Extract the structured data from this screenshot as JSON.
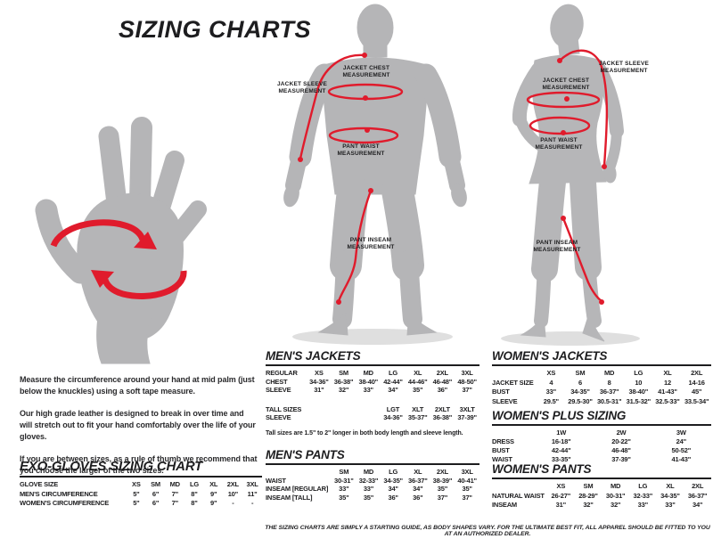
{
  "page": {
    "title": "SIZING CHARTS",
    "disclaimer": "THE SIZING CHARTS ARE SIMPLY A STARTING GUIDE, AS BODY SHAPES VARY. FOR THE ULTIMATE BEST FIT, ALL APPAREL SHOULD BE FITTED TO YOU AT AN AUTHORIZED DEALER."
  },
  "colors": {
    "accent_red": "#e01b2c",
    "silhouette_gray": "#b5b5b7",
    "shadow_gray": "#dfdfdf",
    "text_black": "#1d1d1f"
  },
  "glove_info": {
    "paragraphs": [
      "Measure the circumference around your hand at mid palm (just below the knuckles) using a soft tape measure.",
      "Our high grade leather is designed to break in over time and will stretch out to fit your hand comfortably over the life of your gloves.",
      "If you are between sizes, as a rule of thumb we recommend that you choose the larger of the two sizes."
    ]
  },
  "figures": {
    "male": {
      "labels": {
        "sleeve": "JACKET SLEEVE MEASUREMENT",
        "chest": "JACKET CHEST MEASUREMENT",
        "waist": "PANT WAIST MEASUREMENT",
        "inseam": "PANT INSEAM MEASUREMENT"
      }
    },
    "female": {
      "labels": {
        "sleeve": "JACKET SLEEVE MEASUREMENT",
        "chest": "JACKET CHEST MEASUREMENT",
        "waist": "PANT WAIST MEASUREMENT",
        "inseam": "PANT INSEAM MEASUREMENT"
      }
    }
  },
  "tables": {
    "exo_gloves": {
      "title": "EXO-GLOVES SIZING CHART",
      "rows": [
        [
          "GLOVE SIZE",
          "XS",
          "SM",
          "MD",
          "LG",
          "XL",
          "2XL",
          "3XL"
        ],
        [
          "MEN'S CIRCUMFERENCE",
          "5\"",
          "6\"",
          "7\"",
          "8\"",
          "9\"",
          "10\"",
          "11\""
        ],
        [
          "WOMEN'S CIRCUMFERENCE",
          "5\"",
          "6\"",
          "7\"",
          "8\"",
          "9\"",
          "-",
          "-"
        ]
      ]
    },
    "mens_jackets": {
      "title": "MEN'S JACKETS",
      "rows": [
        [
          "REGULAR",
          "XS",
          "SM",
          "MD",
          "LG",
          "XL",
          "2XL",
          "3XL"
        ],
        [
          "CHEST",
          "34-36\"",
          "36-38\"",
          "38-40\"",
          "42-44\"",
          "44-46\"",
          "46-48\"",
          "48-50\""
        ],
        [
          "SLEEVE",
          "31\"",
          "32\"",
          "33\"",
          "34\"",
          "35\"",
          "36\"",
          "37\""
        ]
      ],
      "tall_rows": [
        [
          "TALL SIZES",
          "",
          "",
          "",
          "LGT",
          "XLT",
          "2XLT",
          "3XLT"
        ],
        [
          "SLEEVE",
          "",
          "",
          "",
          "34-36\"",
          "35-37\"",
          "36-38\"",
          "37-39\""
        ]
      ],
      "note": "Tall sizes are 1.5\" to 2\" longer in both body length and sleeve length."
    },
    "mens_pants": {
      "title": "MEN'S PANTS",
      "rows": [
        [
          "",
          "SM",
          "MD",
          "LG",
          "XL",
          "2XL",
          "3XL"
        ],
        [
          "WAIST",
          "30-31\"",
          "32-33\"",
          "34-35\"",
          "36-37\"",
          "38-39\"",
          "40-41\""
        ],
        [
          "INSEAM [REGULAR]",
          "33\"",
          "33\"",
          "34\"",
          "34\"",
          "35\"",
          "35\""
        ],
        [
          "INSEAM [TALL]",
          "35\"",
          "35\"",
          "36\"",
          "36\"",
          "37\"",
          "37\""
        ]
      ]
    },
    "womens_jackets": {
      "title": "WOMEN'S JACKETS",
      "rows": [
        [
          "",
          "XS",
          "SM",
          "MD",
          "LG",
          "XL",
          "2XL"
        ],
        [
          "JACKET SIZE",
          "4",
          "6",
          "8",
          "10",
          "12",
          "14-16"
        ],
        [
          "BUST",
          "33\"",
          "34-35\"",
          "36-37\"",
          "38-40\"",
          "41-43\"",
          "45\""
        ],
        [
          "SLEEVE",
          "29.5\"",
          "29.5-30\"",
          "30.5-31\"",
          "31.5-32\"",
          "32.5-33\"",
          "33.5-34\""
        ]
      ]
    },
    "womens_plus": {
      "title": "WOMEN'S PLUS SIZING",
      "rows": [
        [
          "",
          "1W",
          "2W",
          "3W"
        ],
        [
          "DRESS",
          "16-18\"",
          "20-22\"",
          "24\""
        ],
        [
          "BUST",
          "42-44\"",
          "46-48\"",
          "50-52\""
        ],
        [
          "WAIST",
          "33-35\"",
          "37-39\"",
          "41-43\""
        ]
      ]
    },
    "womens_pants": {
      "title": "WOMEN'S PANTS",
      "rows": [
        [
          "",
          "XS",
          "SM",
          "MD",
          "LG",
          "XL",
          "2XL"
        ],
        [
          "NATURAL WAIST",
          "26-27\"",
          "28-29\"",
          "30-31\"",
          "32-33\"",
          "34-35\"",
          "36-37\""
        ],
        [
          "INSEAM",
          "31\"",
          "32\"",
          "32\"",
          "33\"",
          "33\"",
          "34\""
        ]
      ]
    }
  }
}
